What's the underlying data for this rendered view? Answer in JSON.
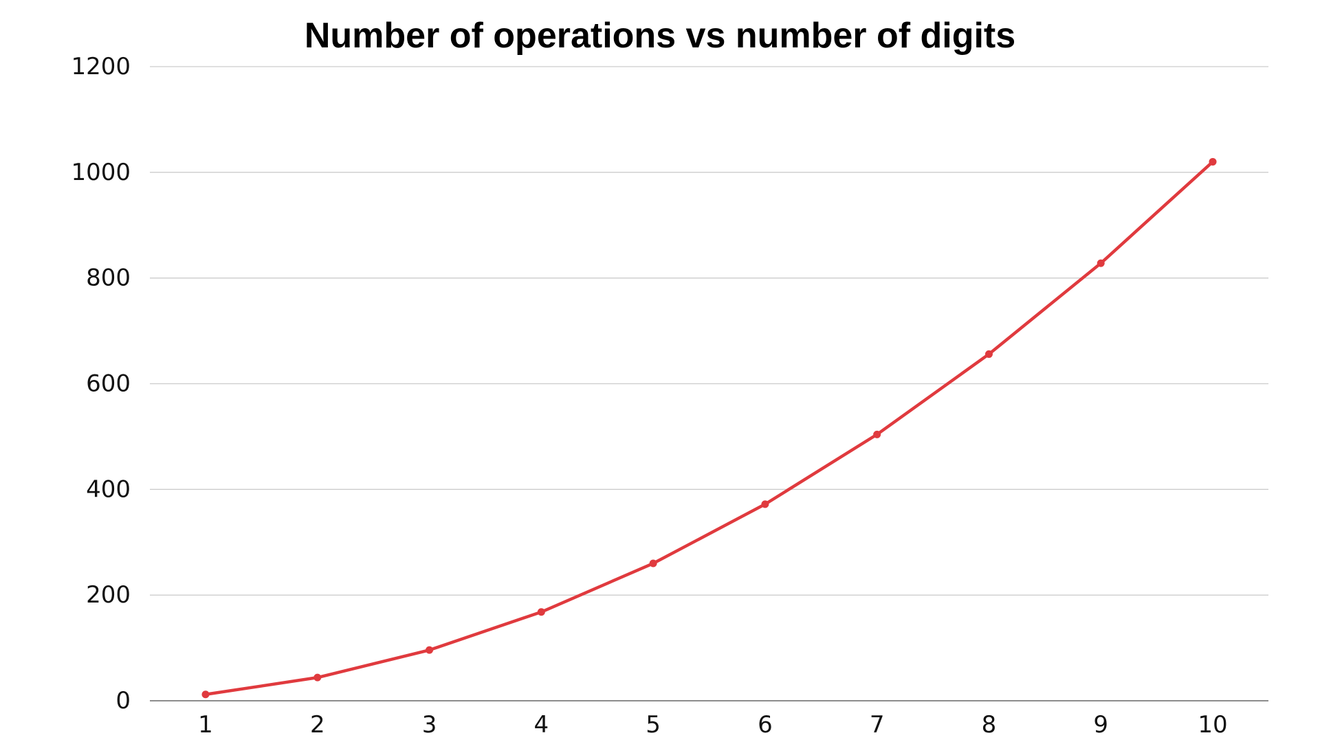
{
  "chart_data": {
    "type": "line",
    "title": "Number of operations vs number of digits",
    "xlabel": "",
    "ylabel": "",
    "x": [
      1,
      2,
      3,
      4,
      5,
      6,
      7,
      8,
      9,
      10
    ],
    "series": [
      {
        "values": [
          12,
          44,
          96,
          168,
          260,
          372,
          504,
          656,
          828,
          1020
        ],
        "color": "#e03a3e"
      }
    ],
    "ylim": [
      0,
      1200
    ],
    "yticks": [
      0,
      200,
      400,
      600,
      800,
      1000,
      1200
    ],
    "grid": true,
    "legend": "none"
  }
}
